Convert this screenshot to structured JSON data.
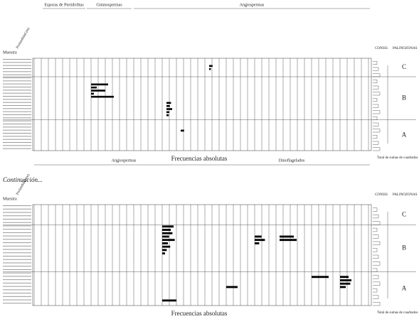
{
  "panels": [
    {
      "groups": [
        "Esporas de Pteridofitas",
        "Gimnospermas",
        "Angiospermas"
      ],
      "row_header": "Muestra",
      "depth_header": "Profundidad (m)",
      "bottom_groups": [],
      "axis_title": "Frecuencias absolutas",
      "coniss": "CONISS",
      "zones_title": "PALINOZONAS",
      "zones": [
        "C",
        "B",
        "A"
      ],
      "total_label": "Total de sumas de cuadrados",
      "columns": [
        {
          "values": [
            0,
            0,
            0,
            0,
            0,
            0,
            0,
            0,
            30,
            10,
            25,
            5,
            40,
            0,
            0,
            0,
            0,
            0,
            0,
            0,
            0,
            0,
            0,
            0,
            0,
            0,
            0,
            0,
            0,
            0
          ]
        },
        {
          "values": [
            0,
            0,
            0,
            0,
            0,
            0,
            0,
            0,
            0,
            0,
            0,
            0,
            0,
            0,
            8,
            6,
            10,
            5,
            4,
            0,
            0,
            0,
            0,
            0,
            0,
            0,
            0,
            0,
            0,
            0
          ]
        },
        {
          "values": [
            0,
            0,
            6,
            3,
            0,
            0,
            0,
            0,
            0,
            0,
            0,
            0,
            0,
            0,
            0,
            0,
            0,
            0,
            0,
            0,
            0,
            0,
            0,
            0,
            0,
            0,
            0,
            0,
            0,
            0
          ]
        },
        {
          "values": [
            0,
            0,
            0,
            0,
            0,
            0,
            0,
            0,
            0,
            0,
            0,
            0,
            0,
            0,
            0,
            0,
            0,
            0,
            0,
            0,
            0,
            0,
            0,
            6,
            0,
            0,
            0,
            0,
            0,
            0
          ]
        }
      ]
    },
    {
      "title": "Continuación...",
      "groups": [],
      "row_header": "Muestra",
      "depth_header": "Profundidad (m)",
      "bottom_groups": [
        "Angiospermas",
        "Dinoflagelados"
      ],
      "axis_title": "Frecuencias absolutas",
      "coniss": "CONISS",
      "zones_title": "PALINOZONAS",
      "zones": [
        "C",
        "B",
        "A"
      ],
      "total_label": "Total de sumas de cuadrados",
      "columns": [
        {
          "values": [
            0,
            0,
            0,
            0,
            0,
            0,
            20,
            15,
            18,
            12,
            22,
            10,
            14,
            8,
            5,
            0,
            0,
            0,
            0,
            0,
            0,
            0,
            0,
            0,
            0,
            0,
            0,
            0,
            25,
            0
          ]
        },
        {
          "values": [
            0,
            0,
            0,
            0,
            0,
            0,
            0,
            0,
            0,
            0,
            0,
            0,
            0,
            0,
            0,
            0,
            0,
            0,
            0,
            0,
            0,
            0,
            0,
            0,
            20,
            0,
            0,
            0,
            0,
            0
          ]
        },
        {
          "values": [
            0,
            0,
            0,
            0,
            0,
            0,
            0,
            0,
            0,
            12,
            18,
            8,
            0,
            0,
            0,
            0,
            0,
            0,
            0,
            0,
            0,
            0,
            0,
            0,
            0,
            0,
            0,
            0,
            0,
            0
          ]
        },
        {
          "values": [
            0,
            0,
            0,
            0,
            0,
            0,
            0,
            0,
            0,
            25,
            30,
            0,
            0,
            0,
            0,
            0,
            0,
            0,
            0,
            0,
            0,
            0,
            0,
            0,
            0,
            0,
            0,
            0,
            0,
            0
          ]
        },
        {
          "values": [
            0,
            0,
            0,
            0,
            0,
            0,
            0,
            0,
            0,
            0,
            0,
            0,
            0,
            0,
            0,
            0,
            0,
            0,
            0,
            0,
            0,
            30,
            0,
            0,
            0,
            0,
            0,
            0,
            0,
            0
          ]
        },
        {
          "values": [
            0,
            0,
            0,
            0,
            0,
            0,
            0,
            0,
            0,
            0,
            0,
            0,
            0,
            0,
            0,
            0,
            0,
            0,
            0,
            0,
            0,
            15,
            20,
            18,
            10,
            0,
            0,
            0,
            0,
            0
          ]
        }
      ]
    }
  ]
}
